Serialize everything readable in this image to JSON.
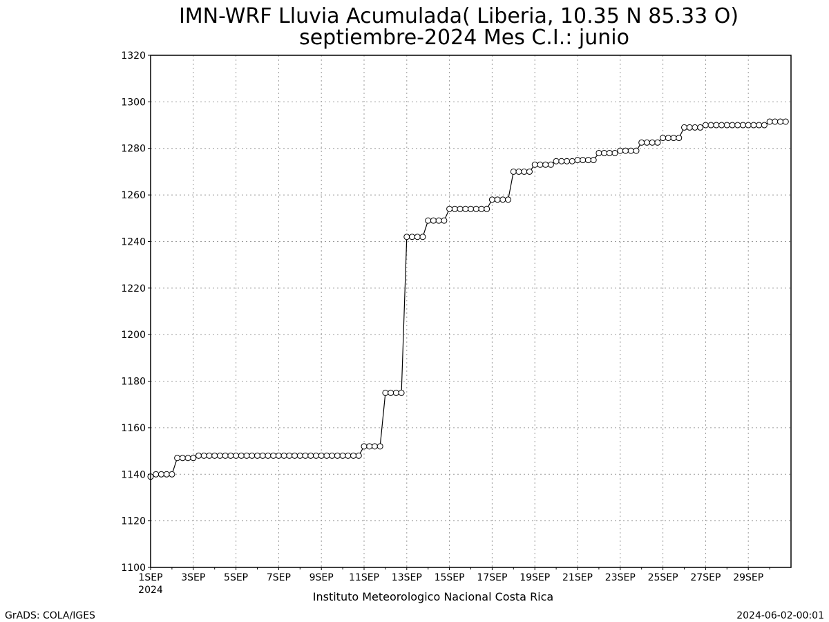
{
  "chart_data": {
    "type": "line",
    "title": "IMN-WRF  Lluvia Acumulada( Liberia, 10.35  N 85.33  O)",
    "subtitle": "septiembre-2024 Mes C.I.: junio",
    "xlabel": "",
    "ylabel": "",
    "ylim": [
      1100,
      1320
    ],
    "yticks": [
      1100,
      1120,
      1140,
      1160,
      1180,
      1200,
      1220,
      1240,
      1260,
      1280,
      1300,
      1320
    ],
    "xlim": [
      "2024-09-01 00:00",
      "2024-10-01 00:00"
    ],
    "x_step_hours": 6,
    "xtick_labels": [
      "1SEP",
      "3SEP",
      "5SEP",
      "7SEP",
      "9SEP",
      "11SEP",
      "13SEP",
      "15SEP",
      "17SEP",
      "19SEP",
      "21SEP",
      "23SEP",
      "25SEP",
      "27SEP",
      "29SEP"
    ],
    "xtick_year": "2024",
    "grid": true,
    "marker": "open-circle",
    "series": [
      {
        "values": [
          1139,
          1140,
          1140,
          1140,
          1140,
          1147,
          1147,
          1147,
          1147,
          1148,
          1148,
          1148,
          1148,
          1148,
          1148,
          1148,
          1148,
          1148,
          1148,
          1148,
          1148,
          1148,
          1148,
          1148,
          1148,
          1148,
          1148,
          1148,
          1148,
          1148,
          1148,
          1148,
          1148,
          1148,
          1148,
          1148,
          1148,
          1148,
          1148,
          1148,
          1152,
          1152,
          1152,
          1152,
          1175,
          1175,
          1175,
          1175,
          1242,
          1242,
          1242,
          1242,
          1249,
          1249,
          1249,
          1249,
          1254,
          1254,
          1254,
          1254,
          1254,
          1254,
          1254,
          1254,
          1258,
          1258,
          1258,
          1258,
          1270,
          1270,
          1270,
          1270,
          1273,
          1273,
          1273,
          1273,
          1274.5,
          1274.5,
          1274.5,
          1274.5,
          1275,
          1275,
          1275,
          1275,
          1278,
          1278,
          1278,
          1278,
          1279,
          1279,
          1279,
          1279,
          1282.5,
          1282.5,
          1282.5,
          1282.5,
          1284.5,
          1284.5,
          1284.5,
          1284.5,
          1289,
          1289,
          1289,
          1289,
          1290,
          1290,
          1290,
          1290,
          1290,
          1290,
          1290,
          1290,
          1290,
          1290,
          1290,
          1290,
          1291.5,
          1291.5,
          1291.5,
          1291.5
        ]
      }
    ]
  },
  "footer": {
    "institution": "Instituto Meteorologico Nacional Costa Rica",
    "software": "GrADS: COLA/IGES",
    "timestamp": "2024-06-02-00:01"
  }
}
